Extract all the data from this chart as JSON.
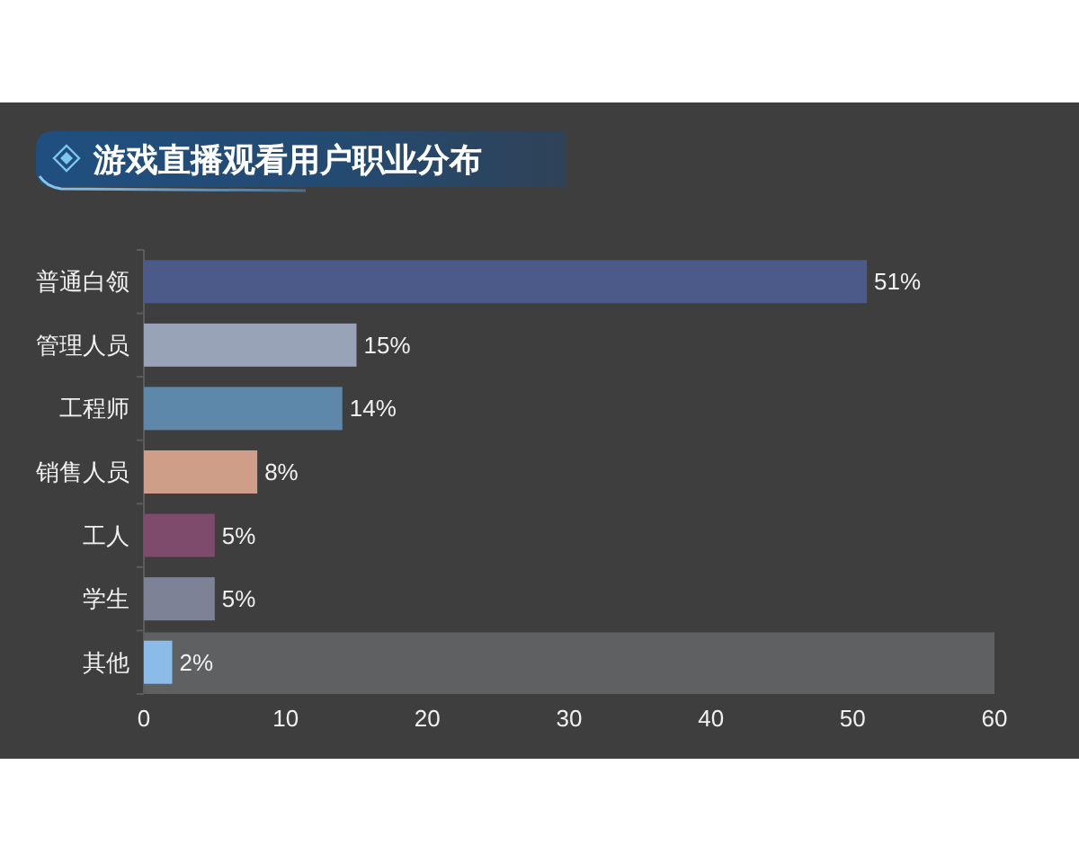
{
  "chart_data": {
    "type": "bar",
    "orientation": "horizontal",
    "title": "游戏直播观看用户职业分布",
    "categories": [
      "普通白领",
      "管理人员",
      "工程师",
      "销售人员",
      "工人",
      "学生",
      "其他"
    ],
    "values": [
      51,
      15,
      14,
      8,
      5,
      5,
      2
    ],
    "colors": [
      "#4b5a88",
      "#98a3b7",
      "#5e88aa",
      "#cf9e88",
      "#7e4b6c",
      "#7d8296",
      "#8bbbe8"
    ],
    "value_labels": [
      "51%",
      "15%",
      "14%",
      "8%",
      "5%",
      "5%",
      "2%"
    ],
    "xlim": [
      0,
      60
    ],
    "xticks": [
      0,
      10,
      20,
      30,
      40,
      50,
      60
    ],
    "bands": [
      {
        "axis": "y",
        "from": "其他",
        "to": "其他",
        "color": "#5f6062"
      }
    ]
  }
}
